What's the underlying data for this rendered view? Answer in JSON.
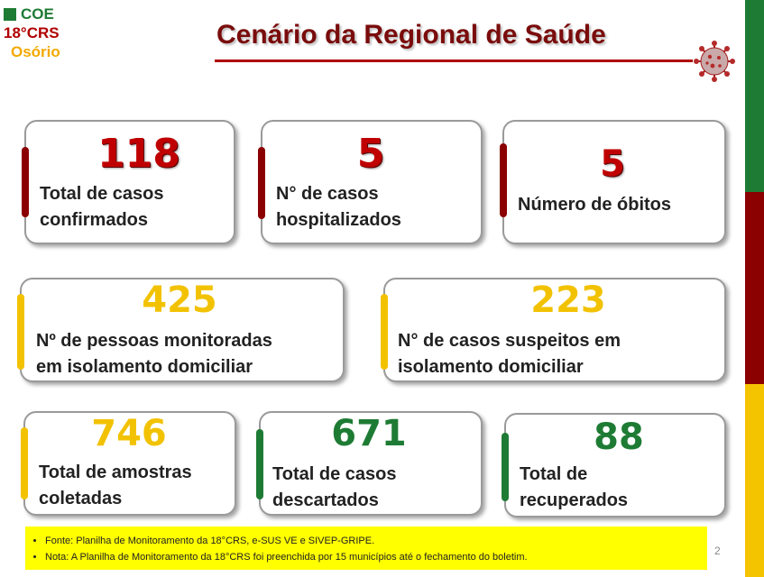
{
  "brand": {
    "coe": "COE",
    "crs": "18°CRS",
    "city": "Osório"
  },
  "title": "Cenário da Regional de Saúde",
  "colors": {
    "red": "#c00000",
    "yellow": "#f2c200",
    "green": "#1e7b34",
    "dark_red": "#8b0000"
  },
  "cards": [
    {
      "value": "118",
      "label_l1": "Total de casos",
      "label_l2": "confirmados"
    },
    {
      "value": "5",
      "label_l1": "N° de casos",
      "label_l2": "hospitalizados"
    },
    {
      "value": "5",
      "label_l1": "Número de óbitos",
      "label_l2": ""
    },
    {
      "value": "425",
      "label_l1": "Nº de pessoas monitoradas",
      "label_l2": "em isolamento domiciliar"
    },
    {
      "value": "223",
      "label_l1": "N° de casos suspeitos em",
      "label_l2": "isolamento domiciliar"
    },
    {
      "value": "746",
      "label_l1": "Total de amostras",
      "label_l2": "coletadas"
    },
    {
      "value": "671",
      "label_l1": "Total de casos",
      "label_l2": "descartados"
    },
    {
      "value": "88",
      "label_l1": "Total de",
      "label_l2": "recuperados"
    }
  ],
  "footer": {
    "items": [
      "Fonte: Planilha de Monitoramento da 18°CRS, e-SUS VE e SIVEP-GRIPE.",
      "Nota: A Planilha de Monitoramento  da 18°CRS foi preenchida por 15  municípios até o fechamento do boletim."
    ]
  },
  "page_number": "2",
  "icons": {
    "virus": "coronavirus-icon",
    "brand_square": "green-square-icon"
  }
}
